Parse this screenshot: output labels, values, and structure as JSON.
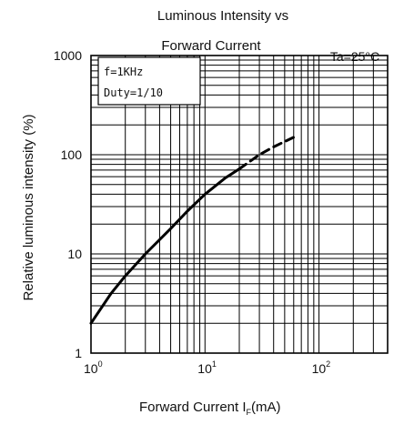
{
  "chart_data": {
    "type": "line",
    "title_line1": "Luminous Intensity vs",
    "title_line2": "Forward Current",
    "condition": "Ta=25°C",
    "xlabel_main": "Forward Current  I",
    "xlabel_sub": "F",
    "xlabel_unit": "(mA)",
    "ylabel": "Relative luminous intensity   (%)",
    "x_scale": "log",
    "y_scale": "log",
    "xlim": [
      1,
      400
    ],
    "ylim": [
      1,
      1000
    ],
    "x_ticks": [
      {
        "value": 1,
        "base": "10",
        "exp": "0"
      },
      {
        "value": 10,
        "base": "10",
        "exp": "1"
      },
      {
        "value": 100,
        "base": "10",
        "exp": "2"
      }
    ],
    "y_ticks": [
      {
        "value": 1,
        "label": "1"
      },
      {
        "value": 10,
        "label": "10"
      },
      {
        "value": 100,
        "label": "100"
      },
      {
        "value": 1000,
        "label": "1000"
      }
    ],
    "grid": true,
    "legend_position": "top-left",
    "legend_lines": [
      "f=1KHz",
      "Duty=1/10"
    ],
    "series": [
      {
        "style": "solid",
        "x": [
          1,
          1.5,
          2,
          3,
          5,
          7,
          10,
          15,
          20
        ],
        "y": [
          2,
          4,
          6,
          10,
          18,
          27,
          40,
          58,
          72
        ]
      },
      {
        "style": "dashed",
        "x": [
          20,
          30,
          40,
          60
        ],
        "y": [
          72,
          100,
          120,
          150
        ]
      }
    ]
  }
}
